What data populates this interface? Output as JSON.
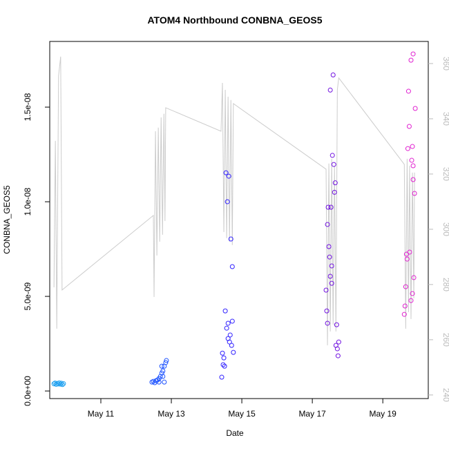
{
  "chart_data": {
    "type": "scatter",
    "title": "ATOM4 Northbound CONBNA_GEOS5",
    "xlabel": "Date",
    "ylabel": "CONBNA_GEOS5",
    "xlim": [
      9.55,
      20.29
    ],
    "xticks": [
      {
        "value": 11,
        "label": "May 11"
      },
      {
        "value": 13,
        "label": "May 13"
      },
      {
        "value": 15,
        "label": "May 15"
      },
      {
        "value": 17,
        "label": "May 17"
      },
      {
        "value": 19,
        "label": "May 19"
      }
    ],
    "ylim": [
      -4e-10,
      1.847e-08
    ],
    "yticks": [
      {
        "value": 0,
        "label": "0.0e+00"
      },
      {
        "value": 5e-09,
        "label": "5.0e-09"
      },
      {
        "value": 1e-08,
        "label": "1.0e-08"
      },
      {
        "value": 1.5e-08,
        "label": "1.5e-08"
      }
    ],
    "y2lim": [
      238.7,
      368
    ],
    "y2ticks": [
      240,
      260,
      280,
      300,
      320,
      340,
      360
    ],
    "y2tick_color": "#bbbbbb",
    "series": [
      {
        "type": "line",
        "axis": "y2",
        "color": "#cccccc",
        "x": [
          9.67,
          9.71,
          9.75,
          9.8,
          9.86,
          9.9,
          12.49,
          12.51,
          12.55,
          12.59,
          12.63,
          12.67,
          12.71,
          12.75,
          12.79,
          12.82,
          12.84,
          14.41,
          14.45,
          14.49,
          14.53,
          14.57,
          14.61,
          14.65,
          14.69,
          14.73,
          14.76,
          17.39,
          17.43,
          17.47,
          17.51,
          17.55,
          17.59,
          17.63,
          17.67,
          17.71,
          17.75,
          19.61,
          19.65,
          19.69,
          19.73,
          19.76,
          19.8,
          19.84,
          19.88,
          19.9
        ],
        "values": [
          279,
          332,
          264,
          355.5,
          362.5,
          278,
          305,
          275.5,
          335.5,
          290.5,
          336.8,
          295.5,
          340.5,
          298,
          341.8,
          303,
          344,
          335.5,
          353,
          299,
          350.5,
          296.8,
          348,
          295.5,
          346.8,
          294.3,
          345.5,
          321.75,
          258,
          323.8,
          263,
          325.5,
          265.5,
          323,
          263,
          350.5,
          354.8,
          323.5,
          264,
          325.5,
          270,
          323,
          267.5,
          320.5,
          275,
          320.5
        ]
      },
      {
        "color": "#1ea0f0",
        "x": [
          9.67,
          9.7,
          9.73,
          9.76,
          9.79,
          9.82,
          9.85,
          9.88,
          9.91,
          9.94
        ],
        "values": [
          3.8e-10,
          4.2e-10,
          3.5e-10,
          4e-10,
          3.7e-10,
          4.3e-10,
          3.6e-10,
          4.1e-10,
          3.4e-10,
          3.9e-10
        ]
      },
      {
        "color": "#1a50ff",
        "x": [
          12.45,
          12.49,
          12.53,
          12.57,
          12.61,
          12.65,
          12.69,
          12.73,
          12.76,
          12.8,
          12.84,
          12.86,
          12.73,
          12.76,
          12.8,
          12.65
        ],
        "values": [
          4.7e-10,
          5.1e-10,
          4.4e-10,
          5.5e-10,
          5.8e-10,
          6.6e-10,
          7.7e-10,
          9.5e-10,
          1.06e-09,
          1.31e-09,
          1.5e-09,
          1.61e-09,
          1.31e-09,
          7.7e-10,
          4.7e-10,
          4.7e-10
        ]
      },
      {
        "color": "#3020ff",
        "x": [
          14.43,
          14.45,
          14.47,
          14.49,
          14.53,
          14.55,
          14.57,
          14.59,
          14.61,
          14.63,
          14.65,
          14.67,
          14.69,
          14.71,
          14.73,
          14.73,
          14.76,
          14.51,
          14.61
        ],
        "values": [
          7.3e-10,
          2e-09,
          1.39e-09,
          1.75e-09,
          4.23e-09,
          1.153e-08,
          3.32e-09,
          1e-08,
          3.58e-09,
          1.135e-08,
          2.59e-09,
          2.96e-09,
          8.03e-09,
          2.41e-09,
          3.69e-09,
          6.57e-09,
          2.04e-09,
          1.31e-09,
          2.77e-09
        ]
      },
      {
        "color": "#7010e0",
        "x": [
          17.39,
          17.41,
          17.43,
          17.45,
          17.47,
          17.49,
          17.51,
          17.53,
          17.55,
          17.57,
          17.59,
          17.61,
          17.63,
          17.65,
          17.67,
          17.69,
          17.71,
          17.73,
          17.75,
          17.43,
          17.51,
          17.55
        ],
        "values": [
          5.33e-09,
          4.23e-09,
          8.8e-09,
          9.71e-09,
          7.63e-09,
          7.08e-09,
          1.59e-08,
          9.71e-09,
          6.61e-09,
          1.245e-08,
          1.67e-08,
          1.197e-08,
          1.05e-08,
          1.1e-08,
          2.41e-09,
          3.5e-09,
          2.23e-09,
          1.86e-09,
          2.59e-09,
          3.58e-09,
          6.06e-09,
          5.69e-09
        ]
      },
      {
        "color": "#e020d0",
        "x": [
          19.61,
          19.63,
          19.65,
          19.67,
          19.69,
          19.71,
          19.73,
          19.75,
          19.76,
          19.8,
          19.82,
          19.84,
          19.86,
          19.86,
          19.88,
          19.9,
          19.92,
          19.86,
          19.8,
          19.84
        ],
        "values": [
          4.05e-09,
          4.49e-09,
          5.51e-09,
          7.23e-09,
          6.97e-09,
          1.281e-08,
          1.584e-08,
          1.398e-08,
          7.34e-09,
          4.78e-09,
          1.219e-08,
          1.292e-08,
          1.117e-08,
          1.19e-08,
          5.99e-09,
          1.044e-08,
          1.493e-08,
          1.781e-08,
          1.748e-08,
          5.15e-09
        ]
      }
    ]
  }
}
